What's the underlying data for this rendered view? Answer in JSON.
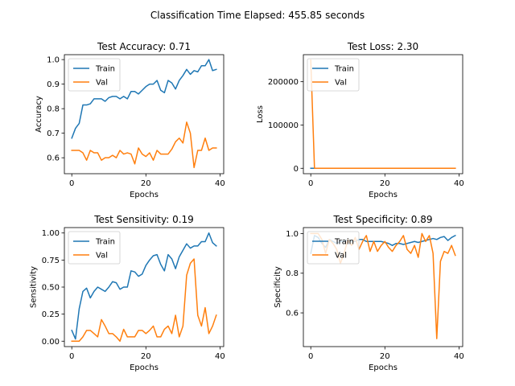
{
  "figure": {
    "suptitle": "Classification Time Elapsed: 455.85 seconds"
  },
  "colors": {
    "train": "#1f77b4",
    "val": "#ff7f0e"
  },
  "chart_data": [
    {
      "type": "line",
      "title": "Test Accuracy: 0.71",
      "xlabel": "Epochs",
      "ylabel": "Accuracy",
      "xlim": [
        -2,
        41
      ],
      "ylim": [
        0.535,
        1.02
      ],
      "xticks": [
        0,
        20,
        40
      ],
      "xtick_labels": [
        "0",
        "20",
        "40"
      ],
      "yticks": [
        0.6,
        0.7,
        0.8,
        0.9,
        1.0
      ],
      "ytick_labels": [
        "0.6",
        "0.7",
        "0.8",
        "0.9",
        "1.0"
      ],
      "legend": "upper-left",
      "series": [
        {
          "name": "Train",
          "color": "#1f77b4",
          "values": [
            0.68,
            0.72,
            0.74,
            0.815,
            0.815,
            0.82,
            0.84,
            0.84,
            0.84,
            0.83,
            0.845,
            0.85,
            0.85,
            0.84,
            0.85,
            0.84,
            0.87,
            0.87,
            0.86,
            0.875,
            0.89,
            0.9,
            0.9,
            0.915,
            0.875,
            0.865,
            0.915,
            0.905,
            0.88,
            0.915,
            0.935,
            0.96,
            0.94,
            0.955,
            0.95,
            0.975,
            0.975,
            1.0,
            0.955,
            0.96
          ]
        },
        {
          "name": "Val",
          "color": "#ff7f0e",
          "values": [
            0.63,
            0.63,
            0.63,
            0.62,
            0.59,
            0.63,
            0.62,
            0.62,
            0.59,
            0.6,
            0.6,
            0.61,
            0.6,
            0.63,
            0.615,
            0.62,
            0.615,
            0.575,
            0.64,
            0.615,
            0.605,
            0.62,
            0.59,
            0.63,
            0.615,
            0.615,
            0.615,
            0.635,
            0.665,
            0.68,
            0.66,
            0.745,
            0.7,
            0.56,
            0.63,
            0.63,
            0.68,
            0.63,
            0.64,
            0.64
          ]
        }
      ]
    },
    {
      "type": "line",
      "title": "Test Loss: 2.30",
      "xlabel": "Epochs",
      "ylabel": "Loss",
      "xlim": [
        -2,
        41
      ],
      "ylim": [
        -12500,
        262500
      ],
      "xticks": [
        0,
        20,
        40
      ],
      "xtick_labels": [
        "0",
        "20",
        "40"
      ],
      "yticks": [
        0,
        100000,
        200000
      ],
      "ytick_labels": [
        "0",
        "100000",
        "200000"
      ],
      "legend": "upper-left",
      "series": [
        {
          "name": "Train",
          "color": "#1f77b4",
          "values": [
            50,
            50,
            50,
            50,
            50,
            50,
            50,
            50,
            50,
            50,
            50,
            50,
            50,
            50,
            50,
            50,
            50,
            50,
            50,
            50,
            50,
            50,
            50,
            50,
            50,
            50,
            50,
            50,
            50,
            50,
            50,
            50,
            50,
            50,
            50,
            50,
            50,
            50,
            50,
            50
          ]
        },
        {
          "name": "Val",
          "color": "#ff7f0e",
          "values": [
            250000,
            300,
            20,
            10,
            10,
            10,
            10,
            10,
            10,
            10,
            10,
            10,
            10,
            10,
            10,
            10,
            10,
            10,
            10,
            10,
            10,
            10,
            10,
            10,
            10,
            10,
            10,
            10,
            10,
            10,
            10,
            10,
            10,
            10,
            10,
            10,
            10,
            10,
            10,
            10
          ]
        }
      ]
    },
    {
      "type": "line",
      "title": "Test Sensitivity: 0.19",
      "xlabel": "Epochs",
      "ylabel": "Sensitivity",
      "xlim": [
        -2,
        41
      ],
      "ylim": [
        -0.05,
        1.05
      ],
      "xticks": [
        0,
        20,
        40
      ],
      "xtick_labels": [
        "0",
        "20",
        "40"
      ],
      "yticks": [
        0.0,
        0.25,
        0.5,
        0.75,
        1.0
      ],
      "ytick_labels": [
        "0.00",
        "0.25",
        "0.50",
        "0.75",
        "1.00"
      ],
      "legend": "upper-left",
      "series": [
        {
          "name": "Train",
          "color": "#1f77b4",
          "values": [
            0.1,
            0.02,
            0.3,
            0.46,
            0.49,
            0.4,
            0.46,
            0.5,
            0.48,
            0.46,
            0.5,
            0.55,
            0.54,
            0.48,
            0.5,
            0.5,
            0.65,
            0.64,
            0.6,
            0.62,
            0.7,
            0.75,
            0.79,
            0.8,
            0.71,
            0.65,
            0.8,
            0.76,
            0.67,
            0.78,
            0.84,
            0.9,
            0.86,
            0.88,
            0.88,
            0.92,
            0.92,
            1.0,
            0.91,
            0.88
          ]
        },
        {
          "name": "Val",
          "color": "#ff7f0e",
          "values": [
            0.0,
            0.0,
            0.0,
            0.04,
            0.1,
            0.1,
            0.07,
            0.04,
            0.2,
            0.14,
            0.07,
            0.07,
            0.04,
            0.0,
            0.11,
            0.04,
            0.04,
            0.04,
            0.1,
            0.1,
            0.07,
            0.1,
            0.14,
            0.04,
            0.04,
            0.11,
            0.14,
            0.07,
            0.24,
            0.04,
            0.14,
            0.61,
            0.72,
            0.76,
            0.24,
            0.14,
            0.31,
            0.07,
            0.14,
            0.24
          ]
        }
      ]
    },
    {
      "type": "line",
      "title": "Test Specificity: 0.89",
      "xlabel": "Epochs",
      "ylabel": "Specificity",
      "xlim": [
        -2,
        41
      ],
      "ylim": [
        0.43,
        1.03
      ],
      "xticks": [
        0,
        20,
        40
      ],
      "xtick_labels": [
        "0",
        "20",
        "40"
      ],
      "yticks": [
        0.6,
        0.8,
        1.0
      ],
      "ytick_labels": [
        "0.6",
        "0.8",
        "1.0"
      ],
      "legend": "upper-left",
      "series": [
        {
          "name": "Train",
          "color": "#1f77b4",
          "values": [
            0.9,
            0.99,
            0.98,
            0.95,
            0.93,
            0.97,
            0.96,
            0.95,
            0.96,
            0.96,
            0.97,
            0.96,
            0.96,
            0.97,
            0.97,
            0.96,
            0.96,
            0.96,
            0.96,
            0.96,
            0.955,
            0.95,
            0.94,
            0.95,
            0.95,
            0.945,
            0.95,
            0.955,
            0.96,
            0.955,
            0.96,
            0.965,
            0.97,
            0.975,
            0.97,
            0.98,
            0.985,
            0.965,
            0.98,
            0.99
          ]
        },
        {
          "name": "Val",
          "color": "#ff7f0e",
          "values": [
            1.0,
            1.0,
            1.0,
            0.97,
            0.9,
            0.97,
            0.95,
            0.92,
            0.85,
            0.9,
            0.97,
            0.94,
            0.98,
            0.92,
            0.96,
            0.99,
            0.91,
            0.96,
            0.91,
            0.94,
            0.96,
            0.93,
            0.91,
            0.94,
            0.96,
            0.99,
            0.92,
            0.9,
            0.94,
            0.88,
            1.0,
            0.96,
            0.99,
            0.9,
            0.47,
            0.86,
            0.91,
            0.9,
            0.94,
            0.89
          ]
        }
      ]
    }
  ]
}
